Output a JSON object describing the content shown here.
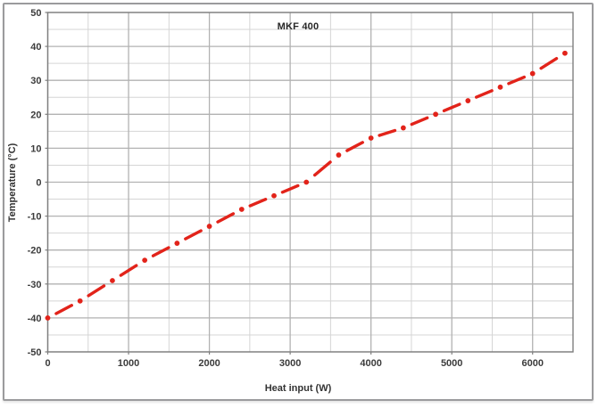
{
  "chart": {
    "title": "MKF 400",
    "xlabel": "Heat input (W)",
    "ylabel": "Temperature (°C)"
  },
  "chart_data": {
    "type": "line",
    "title": "MKF 400",
    "xlabel": "Heat input (W)",
    "ylabel": "Temperature (°C)",
    "x": [
      0,
      400,
      800,
      1200,
      1600,
      2000,
      2400,
      2800,
      3200,
      3600,
      4000,
      4400,
      4800,
      5200,
      5600,
      6000,
      6400
    ],
    "y": [
      -40,
      -35,
      -29,
      -23,
      -18,
      -13,
      -8,
      -4,
      0,
      8,
      13,
      16,
      20,
      24,
      28,
      32,
      38
    ],
    "xlim": [
      0,
      6500
    ],
    "ylim": [
      -50,
      50
    ],
    "x_label_ticks": [
      0,
      1000,
      2000,
      3000,
      4000,
      5000,
      6000
    ],
    "x_minor_step": 500,
    "x_major_step": 1000,
    "y_major_step": 10,
    "y_minor_step": 5,
    "grid": "major+minor",
    "legend_position": "none",
    "line_style": "dash-dot",
    "marker": "circle",
    "line_color": "#e2231a",
    "minor_grid_color": "#d5d5d5",
    "major_grid_color": "#b2b2b2",
    "axis_border_color": "#7f7f7f",
    "tick_label_color": "#3b3b3b"
  }
}
